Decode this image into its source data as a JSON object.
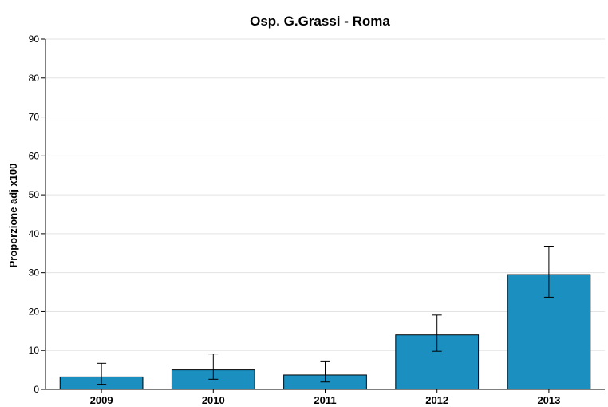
{
  "chart_data": {
    "type": "bar",
    "title": "Osp. G.Grassi - Roma",
    "xlabel": "",
    "ylabel": "Proporzione adj x100",
    "categories": [
      "2009",
      "2010",
      "2011",
      "2012",
      "2013"
    ],
    "values": [
      3.2,
      5.0,
      3.7,
      14.0,
      29.5
    ],
    "error_low": [
      1.3,
      2.6,
      1.9,
      9.8,
      23.7
    ],
    "error_high": [
      6.7,
      9.1,
      7.3,
      19.1,
      36.8
    ],
    "ylim": [
      0,
      90
    ],
    "yticks": [
      0,
      10,
      20,
      30,
      40,
      50,
      60,
      70,
      80,
      90
    ],
    "grid": true,
    "bar_color": "#1a8fc0"
  }
}
